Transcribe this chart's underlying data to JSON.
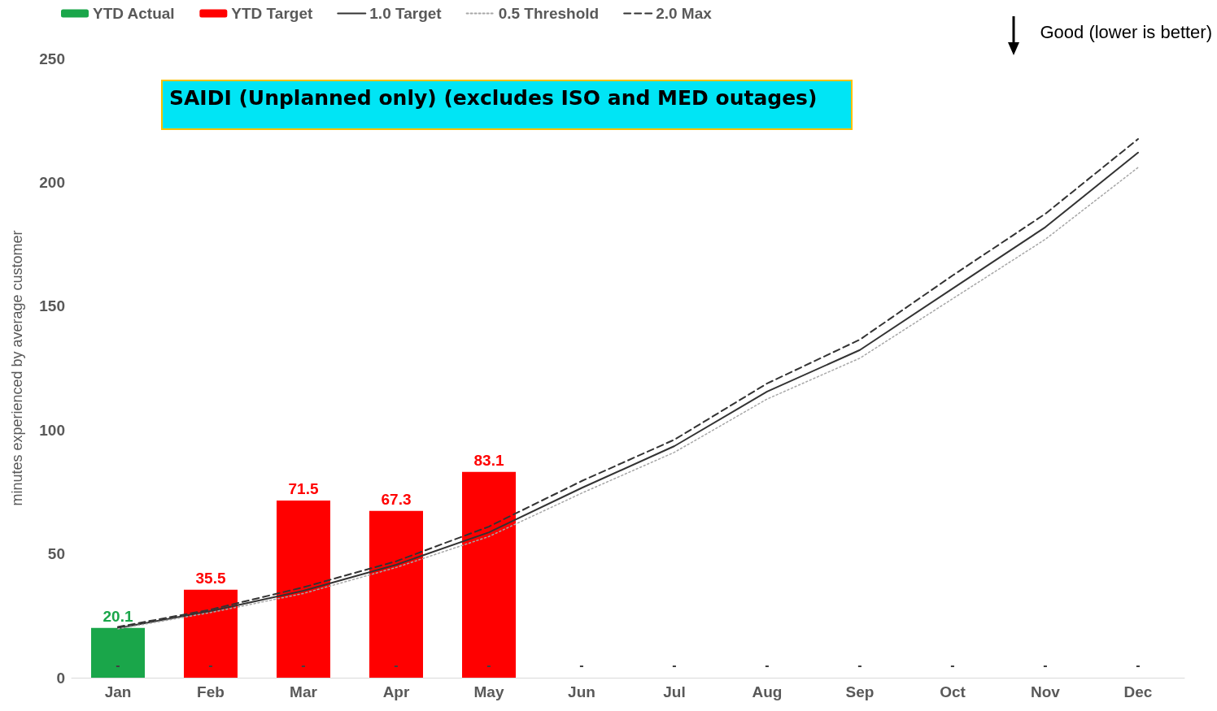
{
  "chart_data": {
    "type": "bar",
    "title": "SAIDI (Unplanned only) (excludes ISO and MED outages)",
    "ylabel": "minutes experienced by average customer",
    "categories": [
      "Jan",
      "Feb",
      "Mar",
      "Apr",
      "May",
      "Jun",
      "Jul",
      "Aug",
      "Sep",
      "Oct",
      "Nov",
      "Dec"
    ],
    "series": [
      {
        "name": "YTD Actual",
        "color": "#1aa64a",
        "values": [
          20.1,
          null,
          null,
          null,
          null,
          null,
          null,
          null,
          null,
          null,
          null,
          null
        ],
        "value_labels": [
          "20.1",
          null,
          null,
          null,
          null,
          null,
          null,
          null,
          null,
          null,
          null,
          null
        ]
      },
      {
        "name": "YTD Target",
        "color": "#ff0000",
        "values": [
          null,
          35.5,
          71.5,
          67.3,
          83.1,
          null,
          null,
          null,
          null,
          null,
          null,
          null
        ],
        "value_labels": [
          null,
          "35.5",
          "71.5",
          "67.3",
          "83.1",
          null,
          null,
          null,
          null,
          null,
          null,
          null
        ]
      },
      {
        "name": "1.0 Target",
        "type": "line",
        "color": "#333333",
        "line_style": "solid",
        "values": [
          20.0,
          26.9,
          35.1,
          45.6,
          58.7,
          76.6,
          93.5,
          115.5,
          132.3,
          157.1,
          181.9,
          212.0
        ]
      },
      {
        "name": "0.5 Threshold",
        "type": "line",
        "color": "#a6a6a6",
        "line_style": "dotted",
        "values": [
          19.7,
          26.3,
          34.0,
          44.5,
          57.0,
          74.5,
          91.0,
          112.5,
          129.0,
          153.0,
          177.0,
          206.0
        ]
      },
      {
        "name": "2.0 Max",
        "type": "line",
        "color": "#333333",
        "line_style": "dashed",
        "values": [
          20.5,
          27.5,
          36.5,
          47.0,
          61.0,
          79.4,
          96.1,
          118.8,
          136.5,
          162.4,
          187.3,
          217.5
        ]
      }
    ],
    "ylim": [
      0,
      250
    ],
    "yticks": [
      0,
      50,
      100,
      150,
      200,
      250
    ],
    "grid": false,
    "legend": "top left",
    "marker": "none",
    "annotations": [
      "Good (lower is better)",
      "-",
      "-",
      "-",
      "-",
      "-",
      "-",
      "-",
      "-",
      "-",
      "-",
      "-",
      "-"
    ]
  }
}
